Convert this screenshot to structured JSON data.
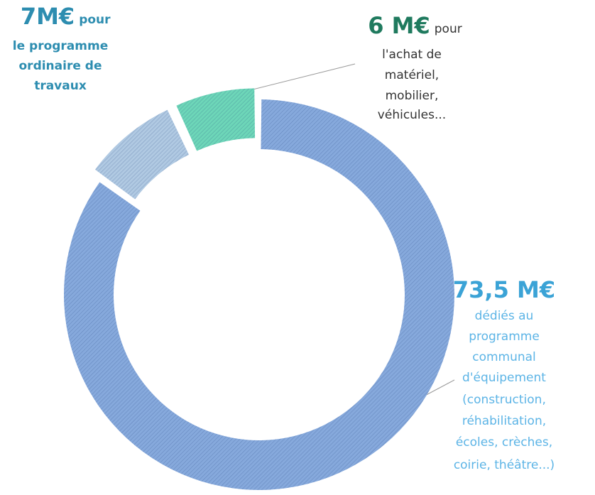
{
  "chart_data": {
    "type": "donut",
    "values": [
      73.5,
      7,
      6
    ],
    "value_labels": [
      "73,5 M€",
      "7M€",
      "6 M€"
    ],
    "descriptions": [
      [
        "dédiés au",
        "programme",
        "communal",
        "d'équipement",
        "(construction,",
        "réhabilitation,",
        "écoles, crèches,",
        "coirie, théâtre...)"
      ],
      [
        "pour",
        "le programme",
        "ordinaire de",
        "travaux"
      ],
      [
        "pour",
        "l'achat de",
        "matériel,",
        "mobilier,",
        "véhicules..."
      ]
    ],
    "colors": [
      "#86a9dc",
      "#b0c9e2",
      "#6dd6b8"
    ]
  }
}
